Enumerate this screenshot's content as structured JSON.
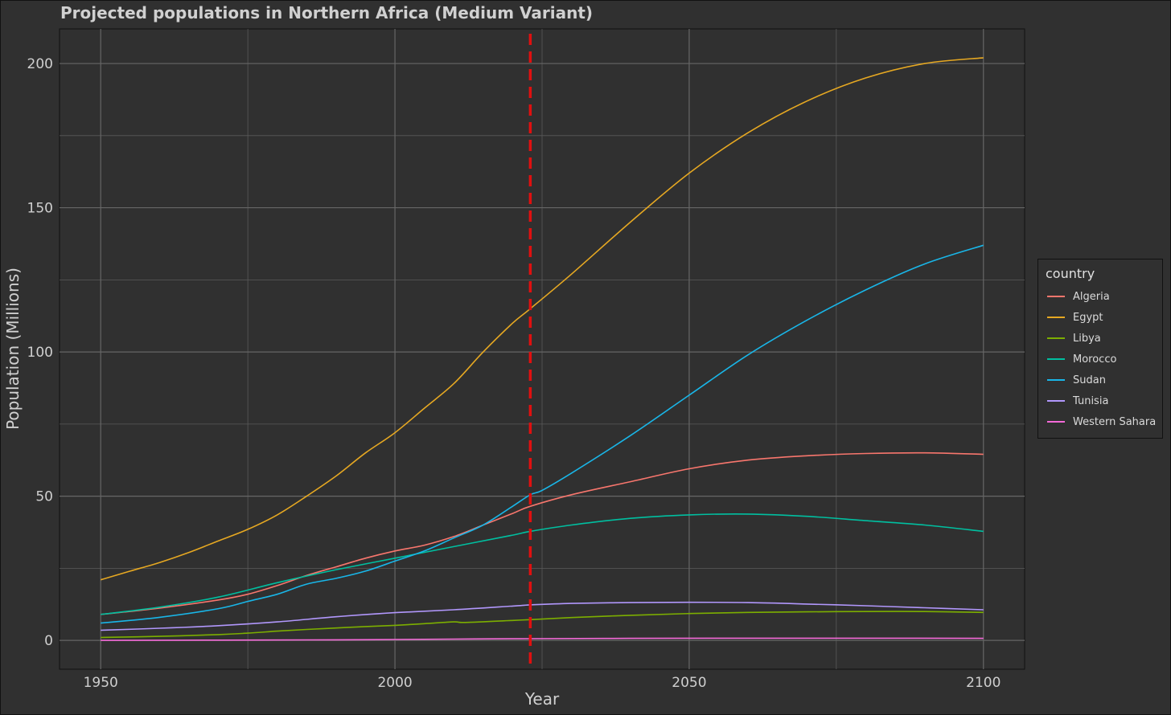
{
  "colors": {
    "background": "#303030",
    "panel": "#303030",
    "grid": "#5a5a5a",
    "text": "#d0d0d0",
    "axis_text": "#cfcfcf",
    "vline": "#e01010"
  },
  "chart_data": {
    "type": "line",
    "title": "Projected populations in Northern Africa (Medium Variant)",
    "xlabel": "Year",
    "ylabel": "Population (Millions)",
    "xlim": [
      1943,
      2107
    ],
    "ylim": [
      -10,
      212
    ],
    "x_ticks": [
      1950,
      2000,
      2050,
      2100
    ],
    "x_tick_labels": [
      "1950",
      "2000",
      "2050",
      "2100"
    ],
    "y_ticks": [
      0,
      50,
      100,
      150,
      200
    ],
    "y_tick_labels": [
      "0",
      "50",
      "100",
      "150",
      "200"
    ],
    "grid": true,
    "legend_title": "country",
    "legend_position": "right",
    "reference_line": {
      "x": 2023,
      "style": "dashed",
      "color": "#e01010"
    },
    "series": [
      {
        "name": "Algeria",
        "color": "#f8766d",
        "points": [
          [
            1950,
            9.0
          ],
          [
            1960,
            11.2
          ],
          [
            1970,
            14.0
          ],
          [
            1975,
            16.0
          ],
          [
            1980,
            19.0
          ],
          [
            1985,
            22.5
          ],
          [
            1990,
            25.5
          ],
          [
            1995,
            28.5
          ],
          [
            2000,
            31.0
          ],
          [
            2005,
            33.0
          ],
          [
            2010,
            36.0
          ],
          [
            2015,
            40.0
          ],
          [
            2020,
            44.0
          ],
          [
            2023,
            46.5
          ],
          [
            2030,
            50.5
          ],
          [
            2040,
            55.0
          ],
          [
            2050,
            59.5
          ],
          [
            2060,
            62.5
          ],
          [
            2070,
            64.0
          ],
          [
            2080,
            64.8
          ],
          [
            2090,
            65.0
          ],
          [
            2100,
            64.5
          ]
        ]
      },
      {
        "name": "Egypt",
        "color": "#e6a822",
        "points": [
          [
            1950,
            21.0
          ],
          [
            1955,
            24.0
          ],
          [
            1960,
            27.0
          ],
          [
            1965,
            30.5
          ],
          [
            1970,
            34.5
          ],
          [
            1975,
            38.5
          ],
          [
            1980,
            43.5
          ],
          [
            1985,
            50.0
          ],
          [
            1990,
            57.0
          ],
          [
            1995,
            65.0
          ],
          [
            2000,
            72.0
          ],
          [
            2005,
            80.5
          ],
          [
            2010,
            89.0
          ],
          [
            2015,
            100.0
          ],
          [
            2020,
            110.0
          ],
          [
            2023,
            115.0
          ],
          [
            2030,
            127.0
          ],
          [
            2040,
            145.0
          ],
          [
            2050,
            162.0
          ],
          [
            2060,
            176.0
          ],
          [
            2070,
            187.0
          ],
          [
            2080,
            195.0
          ],
          [
            2090,
            200.0
          ],
          [
            2100,
            202.0
          ]
        ]
      },
      {
        "name": "Libya",
        "color": "#7cae00",
        "points": [
          [
            1950,
            1.0
          ],
          [
            1960,
            1.4
          ],
          [
            1970,
            2.0
          ],
          [
            1975,
            2.5
          ],
          [
            1980,
            3.2
          ],
          [
            1985,
            3.8
          ],
          [
            1990,
            4.3
          ],
          [
            1995,
            4.8
          ],
          [
            2000,
            5.2
          ],
          [
            2005,
            5.8
          ],
          [
            2010,
            6.4
          ],
          [
            2012,
            6.2
          ],
          [
            2020,
            6.9
          ],
          [
            2023,
            7.2
          ],
          [
            2030,
            7.9
          ],
          [
            2040,
            8.7
          ],
          [
            2050,
            9.3
          ],
          [
            2060,
            9.7
          ],
          [
            2070,
            9.9
          ],
          [
            2080,
            10.0
          ],
          [
            2090,
            10.0
          ],
          [
            2100,
            9.7
          ]
        ]
      },
      {
        "name": "Morocco",
        "color": "#00bfa0",
        "points": [
          [
            1950,
            9.0
          ],
          [
            1960,
            11.5
          ],
          [
            1970,
            15.0
          ],
          [
            1980,
            20.0
          ],
          [
            1990,
            24.5
          ],
          [
            2000,
            28.5
          ],
          [
            2010,
            32.5
          ],
          [
            2020,
            36.5
          ],
          [
            2023,
            37.8
          ],
          [
            2030,
            40.0
          ],
          [
            2040,
            42.3
          ],
          [
            2050,
            43.5
          ],
          [
            2060,
            43.8
          ],
          [
            2070,
            43.0
          ],
          [
            2080,
            41.5
          ],
          [
            2090,
            40.0
          ],
          [
            2100,
            37.8
          ]
        ]
      },
      {
        "name": "Sudan",
        "color": "#19b6e8",
        "points": [
          [
            1950,
            6.0
          ],
          [
            1960,
            8.0
          ],
          [
            1970,
            11.0
          ],
          [
            1975,
            13.5
          ],
          [
            1980,
            16.0
          ],
          [
            1985,
            19.5
          ],
          [
            1990,
            21.5
          ],
          [
            1995,
            24.0
          ],
          [
            2000,
            27.5
          ],
          [
            2005,
            31.0
          ],
          [
            2010,
            35.5
          ],
          [
            2015,
            40.0
          ],
          [
            2020,
            46.5
          ],
          [
            2023,
            50.5
          ],
          [
            2025,
            52.0
          ],
          [
            2030,
            58.0
          ],
          [
            2040,
            71.0
          ],
          [
            2050,
            85.0
          ],
          [
            2060,
            99.0
          ],
          [
            2070,
            111.0
          ],
          [
            2080,
            121.5
          ],
          [
            2090,
            130.5
          ],
          [
            2100,
            137.0
          ]
        ]
      },
      {
        "name": "Tunisia",
        "color": "#b197fc",
        "points": [
          [
            1950,
            3.5
          ],
          [
            1960,
            4.2
          ],
          [
            1970,
            5.1
          ],
          [
            1980,
            6.4
          ],
          [
            1990,
            8.2
          ],
          [
            2000,
            9.6
          ],
          [
            2010,
            10.6
          ],
          [
            2020,
            11.9
          ],
          [
            2023,
            12.3
          ],
          [
            2030,
            12.8
          ],
          [
            2040,
            13.1
          ],
          [
            2050,
            13.2
          ],
          [
            2060,
            13.1
          ],
          [
            2070,
            12.6
          ],
          [
            2080,
            12.0
          ],
          [
            2090,
            11.3
          ],
          [
            2100,
            10.6
          ]
        ]
      },
      {
        "name": "Western Sahara",
        "color": "#f46ad8",
        "points": [
          [
            1950,
            0.0
          ],
          [
            1970,
            0.08
          ],
          [
            1990,
            0.2
          ],
          [
            2000,
            0.3
          ],
          [
            2010,
            0.45
          ],
          [
            2020,
            0.55
          ],
          [
            2023,
            0.58
          ],
          [
            2040,
            0.7
          ],
          [
            2060,
            0.75
          ],
          [
            2080,
            0.75
          ],
          [
            2100,
            0.7
          ]
        ]
      }
    ]
  }
}
